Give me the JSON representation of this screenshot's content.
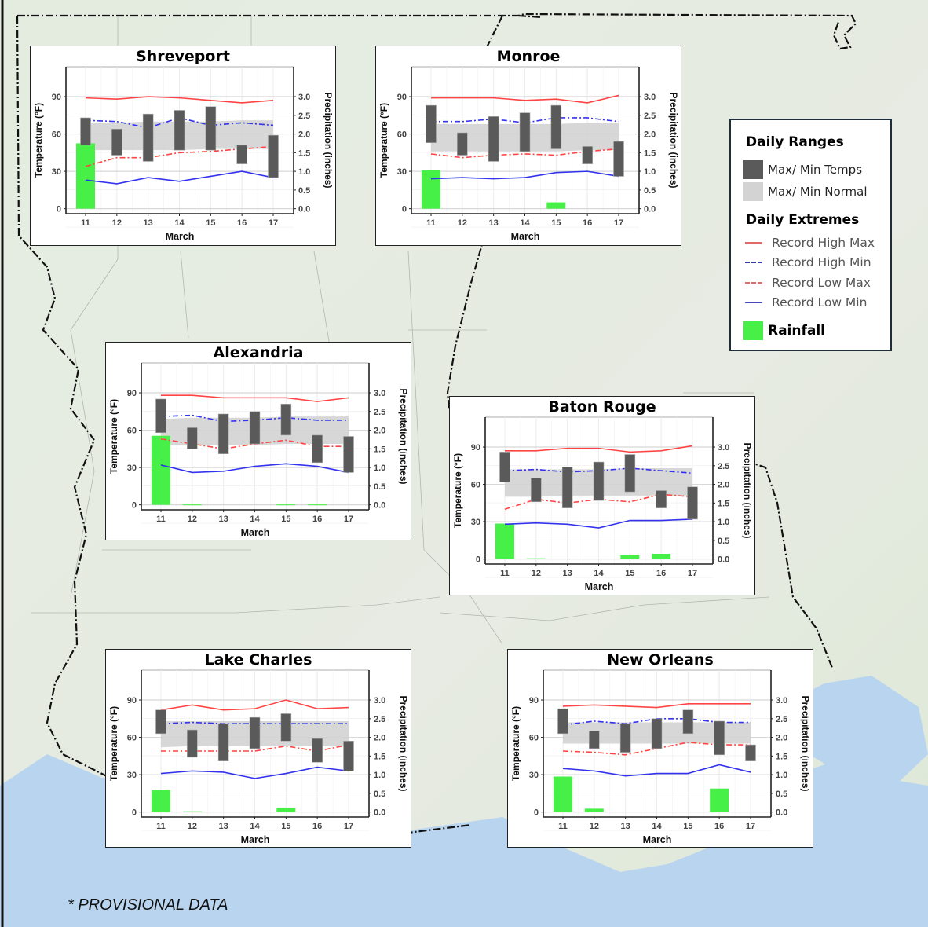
{
  "footnote": "* PROVISIONAL DATA",
  "legend": {
    "ranges_heading": "Daily Ranges",
    "ranges": [
      {
        "label": "Max/ Min Temps",
        "color": "#5a5a5a"
      },
      {
        "label": "Max/ Min Normal",
        "color": "#d3d3d3"
      }
    ],
    "extremes_heading": "Daily Extremes",
    "extremes": [
      {
        "label": "Record High Max",
        "color": "#ff4040",
        "style": "solid"
      },
      {
        "label": "Record High Min",
        "color": "#3030e0",
        "style": "dashdot"
      },
      {
        "label": "Record Low Max",
        "color": "#ff4040",
        "style": "dashdot"
      },
      {
        "label": "Record Low Min",
        "color": "#3030e0",
        "style": "solid"
      }
    ],
    "rainfall_label": "Rainfall",
    "rainfall_color": "#46f046"
  },
  "colors": {
    "temps_bar": "#5a5a5a",
    "normal_band": "#d3d3d3",
    "record_high_max": "#ff4444",
    "record_high_min": "#3333ee",
    "record_low_max": "#ff4444",
    "record_low_min": "#3333ee",
    "rainfall": "#46f046"
  },
  "axes": {
    "y_left_label": "Temperature (°F)",
    "y_right_label": "Precipitation (inches)",
    "x_label": "March",
    "y_left_ticks": [
      0,
      30,
      60,
      90
    ],
    "y_right_ticks": [
      "0.0",
      "0.5",
      "1.0",
      "1.5",
      "2.0",
      "2.5",
      "3.0"
    ],
    "x_ticks": [
      "11",
      "12",
      "13",
      "14",
      "15",
      "16",
      "17"
    ]
  },
  "chart_data": [
    {
      "type": "bar",
      "title": "Shreveport",
      "categories": [
        "11",
        "12",
        "13",
        "14",
        "15",
        "16",
        "17"
      ],
      "xlabel": "March",
      "ylabel": "Temperature (°F)",
      "y2label": "Precipitation (inches)",
      "ylim": [
        -4,
        114
      ],
      "y2lim": [
        0,
        3.0
      ],
      "series": [
        {
          "name": "Max/ Min Temps (max)",
          "values": [
            73,
            64,
            76,
            79,
            82,
            51,
            59
          ]
        },
        {
          "name": "Max/ Min Temps (min)",
          "values": [
            51,
            43,
            38,
            47,
            47,
            36,
            25
          ]
        },
        {
          "name": "Normal Max",
          "values": [
            69,
            69,
            70,
            70,
            70,
            71,
            71
          ]
        },
        {
          "name": "Normal Min",
          "values": [
            47,
            47,
            47,
            47,
            48,
            48,
            48
          ]
        },
        {
          "name": "Record High Max",
          "values": [
            89,
            88,
            90,
            89,
            87,
            85,
            87
          ]
        },
        {
          "name": "Record High Min",
          "values": [
            71,
            70,
            65,
            73,
            67,
            69,
            67
          ]
        },
        {
          "name": "Record Low Max",
          "values": [
            34,
            41,
            41,
            45,
            46,
            48,
            50
          ]
        },
        {
          "name": "Record Low Min",
          "values": [
            23,
            20,
            25,
            22,
            26,
            30,
            25
          ]
        },
        {
          "name": "Rainfall",
          "values": [
            1.75,
            0,
            0,
            0,
            0,
            0,
            0
          ]
        }
      ]
    },
    {
      "type": "bar",
      "title": "Monroe",
      "categories": [
        "11",
        "12",
        "13",
        "14",
        "15",
        "16",
        "17"
      ],
      "xlabel": "March",
      "ylabel": "Temperature (°F)",
      "y2label": "Precipitation (inches)",
      "ylim": [
        -4,
        114
      ],
      "y2lim": [
        0,
        3.0
      ],
      "series": [
        {
          "name": "Max/ Min Temps (max)",
          "values": [
            83,
            61,
            74,
            77,
            83,
            50,
            54
          ]
        },
        {
          "name": "Max/ Min Temps (min)",
          "values": [
            53,
            43,
            38,
            46,
            48,
            36,
            26
          ]
        },
        {
          "name": "Normal Max",
          "values": [
            68,
            68,
            68,
            68,
            68,
            69,
            69
          ]
        },
        {
          "name": "Normal Min",
          "values": [
            46,
            46,
            46,
            46,
            46,
            47,
            47
          ]
        },
        {
          "name": "Record High Max",
          "values": [
            89,
            89,
            89,
            87,
            88,
            85,
            91
          ]
        },
        {
          "name": "Record High Min",
          "values": [
            70,
            70,
            72,
            69,
            73,
            73,
            70
          ]
        },
        {
          "name": "Record Low Max",
          "values": [
            44,
            41,
            43,
            44,
            43,
            46,
            48
          ]
        },
        {
          "name": "Record Low Min",
          "values": [
            24,
            25,
            24,
            25,
            29,
            30,
            26
          ]
        },
        {
          "name": "Rainfall",
          "values": [
            1.03,
            0,
            0,
            0,
            0.17,
            0,
            0
          ]
        }
      ]
    },
    {
      "type": "bar",
      "title": "Alexandria",
      "categories": [
        "11",
        "12",
        "13",
        "14",
        "15",
        "16",
        "17"
      ],
      "xlabel": "March",
      "ylabel": "Temperature (°F)",
      "y2label": "Precipitation (inches)",
      "ylim": [
        -4,
        114
      ],
      "y2lim": [
        0,
        3.0
      ],
      "series": [
        {
          "name": "Max/ Min Temps (max)",
          "values": [
            85,
            62,
            73,
            75,
            81,
            56,
            55
          ]
        },
        {
          "name": "Max/ Min Temps (min)",
          "values": [
            58,
            45,
            41,
            49,
            56,
            34,
            26
          ]
        },
        {
          "name": "Normal Max",
          "values": [
            69,
            70,
            70,
            70,
            71,
            71,
            71
          ]
        },
        {
          "name": "Normal Min",
          "values": [
            48,
            48,
            48,
            48,
            49,
            49,
            49
          ]
        },
        {
          "name": "Record High Max",
          "values": [
            88,
            88,
            86,
            86,
            86,
            83,
            86
          ]
        },
        {
          "name": "Record High Min",
          "values": [
            71,
            72,
            67,
            68,
            70,
            68,
            68
          ]
        },
        {
          "name": "Record Low Max",
          "values": [
            53,
            49,
            45,
            49,
            52,
            47,
            47
          ]
        },
        {
          "name": "Record Low Min",
          "values": [
            32,
            26,
            27,
            31,
            33,
            31,
            26
          ]
        },
        {
          "name": "Rainfall",
          "values": [
            1.85,
            0.01,
            0,
            0,
            0.01,
            0.01,
            0
          ]
        }
      ]
    },
    {
      "type": "bar",
      "title": "Baton Rouge",
      "categories": [
        "11",
        "12",
        "13",
        "14",
        "15",
        "16",
        "17"
      ],
      "xlabel": "March",
      "ylabel": "Temperature (°F)",
      "y2label": "Precipitation (inches)",
      "ylim": [
        -4,
        114
      ],
      "y2lim": [
        0,
        3.0
      ],
      "series": [
        {
          "name": "Max/ Min Temps (max)",
          "values": [
            86,
            65,
            74,
            78,
            84,
            55,
            58
          ]
        },
        {
          "name": "Max/ Min Temps (min)",
          "values": [
            62,
            46,
            41,
            47,
            54,
            41,
            32
          ]
        },
        {
          "name": "Normal Max",
          "values": [
            72,
            72,
            72,
            72,
            73,
            73,
            73
          ]
        },
        {
          "name": "Normal Min",
          "values": [
            50,
            50,
            51,
            51,
            51,
            51,
            51
          ]
        },
        {
          "name": "Record High Max",
          "values": [
            87,
            87,
            89,
            89,
            86,
            87,
            91
          ]
        },
        {
          "name": "Record High Min",
          "values": [
            71,
            72,
            70,
            71,
            73,
            71,
            69
          ]
        },
        {
          "name": "Record Low Max",
          "values": [
            40,
            48,
            45,
            48,
            46,
            52,
            50
          ]
        },
        {
          "name": "Record Low Min",
          "values": [
            28,
            29,
            28,
            25,
            31,
            31,
            32
          ]
        },
        {
          "name": "Rainfall",
          "values": [
            0.95,
            0.02,
            0,
            0,
            0.1,
            0.14,
            0
          ]
        }
      ]
    },
    {
      "type": "bar",
      "title": "Lake Charles",
      "categories": [
        "11",
        "12",
        "13",
        "14",
        "15",
        "16",
        "17"
      ],
      "xlabel": "March",
      "ylabel": "Temperature (°F)",
      "y2label": "Precipitation (inches)",
      "ylim": [
        -4,
        114
      ],
      "y2lim": [
        0,
        3.0
      ],
      "series": [
        {
          "name": "Max/ Min Temps (max)",
          "values": [
            82,
            66,
            71,
            76,
            79,
            59,
            57
          ]
        },
        {
          "name": "Max/ Min Temps (min)",
          "values": [
            63,
            44,
            41,
            51,
            57,
            40,
            33
          ]
        },
        {
          "name": "Normal Max",
          "values": [
            73,
            73,
            73,
            73,
            73,
            73,
            73
          ]
        },
        {
          "name": "Normal Min",
          "values": [
            52,
            53,
            53,
            53,
            53,
            53,
            53
          ]
        },
        {
          "name": "Record High Max",
          "values": [
            82,
            86,
            82,
            83,
            90,
            83,
            84
          ]
        },
        {
          "name": "Record High Min",
          "values": [
            71,
            72,
            71,
            71,
            71,
            71,
            71
          ]
        },
        {
          "name": "Record Low Max",
          "values": [
            49,
            49,
            49,
            49,
            53,
            49,
            54
          ]
        },
        {
          "name": "Record Low Min",
          "values": [
            31,
            33,
            32,
            27,
            31,
            36,
            33
          ]
        },
        {
          "name": "Rainfall",
          "values": [
            0.6,
            0.02,
            0,
            0,
            0.12,
            0,
            0
          ]
        }
      ]
    },
    {
      "type": "bar",
      "title": "New Orleans",
      "categories": [
        "11",
        "12",
        "13",
        "14",
        "15",
        "16",
        "17"
      ],
      "xlabel": "March",
      "ylabel": "Temperature (°F)",
      "y2label": "Precipitation (inches)",
      "ylim": [
        -4,
        114
      ],
      "y2lim": [
        0,
        3.0
      ],
      "series": [
        {
          "name": "Max/ Min Temps (max)",
          "values": [
            83,
            65,
            71,
            75,
            82,
            73,
            54
          ]
        },
        {
          "name": "Max/ Min Temps (min)",
          "values": [
            63,
            51,
            48,
            51,
            63,
            46,
            41
          ]
        },
        {
          "name": "Normal Max",
          "values": [
            72,
            72,
            72,
            72,
            72,
            72,
            72
          ]
        },
        {
          "name": "Normal Min",
          "values": [
            55,
            55,
            55,
            55,
            55,
            55,
            55
          ]
        },
        {
          "name": "Record High Max",
          "values": [
            85,
            86,
            85,
            84,
            87,
            87,
            87
          ]
        },
        {
          "name": "Record High Min",
          "values": [
            70,
            73,
            71,
            75,
            75,
            72,
            72
          ]
        },
        {
          "name": "Record Low Max",
          "values": [
            49,
            48,
            46,
            51,
            56,
            54,
            54
          ]
        },
        {
          "name": "Record Low Min",
          "values": [
            35,
            33,
            29,
            31,
            31,
            38,
            32
          ]
        },
        {
          "name": "Rainfall",
          "values": [
            0.95,
            0.09,
            0,
            0,
            0,
            0.63,
            0
          ]
        }
      ]
    }
  ]
}
